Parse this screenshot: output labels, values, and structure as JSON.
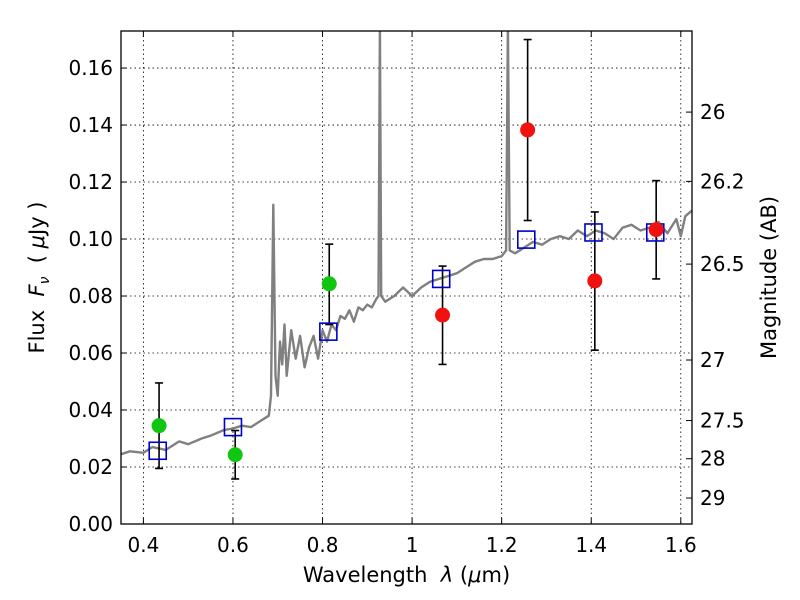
{
  "chart_data": {
    "type": "scatter",
    "xlabel_parts": [
      "Wavelength  ",
      "λ",
      " (",
      "μ",
      "m)"
    ],
    "ylabel_parts": [
      "Flux  ",
      "F",
      "ν",
      "  ( ",
      "μ",
      "Jy )"
    ],
    "y2label": "Magnitude (AB)",
    "xlim": [
      0.35,
      1.625
    ],
    "ylim": [
      0.0,
      0.173
    ],
    "x_ticks": [
      0.4,
      0.6,
      0.8,
      1.0,
      1.2,
      1.4,
      1.6
    ],
    "x_tick_labels": [
      "0.4",
      "0.6",
      "0.8",
      "1",
      "1.2",
      "1.4",
      "1.6"
    ],
    "y_ticks": [
      0.0,
      0.02,
      0.04,
      0.06,
      0.08,
      0.1,
      0.12,
      0.14,
      0.16
    ],
    "y_tick_labels": [
      "0.00",
      "0.02",
      "0.04",
      "0.06",
      "0.08",
      "0.10",
      "0.12",
      "0.14",
      "0.16"
    ],
    "y2_tick_labels": [
      "26",
      "26.2",
      "26.5",
      "27",
      "27.5",
      "28",
      "29"
    ],
    "y2_tick_values": [
      26.0,
      26.2,
      26.5,
      27.0,
      27.5,
      28.0,
      29.0
    ],
    "grid": true,
    "colors": {
      "spectrum": "#808080",
      "green_points": "#11c611",
      "red_points": "#f21111",
      "model_boxes": "#0000cc",
      "errorbars": "#000000"
    },
    "spectrum": [
      [
        0.35,
        0.0245
      ],
      [
        0.37,
        0.0255
      ],
      [
        0.4,
        0.025
      ],
      [
        0.42,
        0.027
      ],
      [
        0.45,
        0.026
      ],
      [
        0.48,
        0.029
      ],
      [
        0.5,
        0.028
      ],
      [
        0.53,
        0.03
      ],
      [
        0.55,
        0.031
      ],
      [
        0.58,
        0.033
      ],
      [
        0.6,
        0.0335
      ],
      [
        0.62,
        0.0345
      ],
      [
        0.64,
        0.034
      ],
      [
        0.66,
        0.036
      ],
      [
        0.68,
        0.038
      ],
      [
        0.685,
        0.045
      ],
      [
        0.69,
        0.112
      ],
      [
        0.695,
        0.052
      ],
      [
        0.7,
        0.045
      ],
      [
        0.705,
        0.064
      ],
      [
        0.71,
        0.056
      ],
      [
        0.715,
        0.07
      ],
      [
        0.72,
        0.052
      ],
      [
        0.73,
        0.068
      ],
      [
        0.74,
        0.058
      ],
      [
        0.75,
        0.066
      ],
      [
        0.76,
        0.055
      ],
      [
        0.77,
        0.062
      ],
      [
        0.78,
        0.066
      ],
      [
        0.79,
        0.058
      ],
      [
        0.8,
        0.068
      ],
      [
        0.81,
        0.064
      ],
      [
        0.82,
        0.07
      ],
      [
        0.83,
        0.068
      ],
      [
        0.84,
        0.073
      ],
      [
        0.85,
        0.072
      ],
      [
        0.86,
        0.075
      ],
      [
        0.87,
        0.071
      ],
      [
        0.88,
        0.076
      ],
      [
        0.89,
        0.075
      ],
      [
        0.9,
        0.077
      ],
      [
        0.91,
        0.076
      ],
      [
        0.92,
        0.079
      ],
      [
        0.925,
        0.08
      ],
      [
        0.928,
        0.175
      ],
      [
        0.931,
        0.08
      ],
      [
        0.94,
        0.078
      ],
      [
        0.96,
        0.08
      ],
      [
        0.98,
        0.083
      ],
      [
        1.0,
        0.08
      ],
      [
        1.02,
        0.083
      ],
      [
        1.04,
        0.085
      ],
      [
        1.06,
        0.086
      ],
      [
        1.08,
        0.087
      ],
      [
        1.1,
        0.088
      ],
      [
        1.12,
        0.09
      ],
      [
        1.14,
        0.092
      ],
      [
        1.16,
        0.093
      ],
      [
        1.18,
        0.093
      ],
      [
        1.2,
        0.094
      ],
      [
        1.21,
        0.096
      ],
      [
        1.214,
        0.175
      ],
      [
        1.218,
        0.096
      ],
      [
        1.23,
        0.095
      ],
      [
        1.25,
        0.097
      ],
      [
        1.27,
        0.099
      ],
      [
        1.29,
        0.098
      ],
      [
        1.31,
        0.1
      ],
      [
        1.33,
        0.101
      ],
      [
        1.35,
        0.1
      ],
      [
        1.37,
        0.103
      ],
      [
        1.39,
        0.101
      ],
      [
        1.41,
        0.103
      ],
      [
        1.43,
        0.102
      ],
      [
        1.45,
        0.1
      ],
      [
        1.47,
        0.104
      ],
      [
        1.49,
        0.105
      ],
      [
        1.51,
        0.103
      ],
      [
        1.53,
        0.104
      ],
      [
        1.55,
        0.106
      ],
      [
        1.57,
        0.102
      ],
      [
        1.59,
        0.107
      ],
      [
        1.6,
        0.101
      ],
      [
        1.61,
        0.108
      ],
      [
        1.625,
        0.11
      ]
    ],
    "green_points": [
      {
        "x": 0.435,
        "y": 0.0345,
        "yerr": [
          0.0195,
          0.0495
        ]
      },
      {
        "x": 0.605,
        "y": 0.0243,
        "yerr": [
          0.0158,
          0.0328
        ]
      },
      {
        "x": 0.815,
        "y": 0.0843,
        "yerr": [
          0.07,
          0.0982
        ]
      }
    ],
    "red_points": [
      {
        "x": 1.068,
        "y": 0.0733,
        "yerr": [
          0.056,
          0.0905
        ]
      },
      {
        "x": 1.258,
        "y": 0.1383,
        "yerr": [
          0.1065,
          0.17
        ]
      },
      {
        "x": 1.408,
        "y": 0.0853,
        "yerr": [
          0.061,
          0.1095
        ]
      },
      {
        "x": 1.545,
        "y": 0.1033,
        "yerr": [
          0.086,
          0.1205
        ]
      }
    ],
    "model_boxes": [
      {
        "x": 0.432,
        "y": 0.0257
      },
      {
        "x": 0.6,
        "y": 0.034
      },
      {
        "x": 0.813,
        "y": 0.0675
      },
      {
        "x": 1.065,
        "y": 0.086
      },
      {
        "x": 1.255,
        "y": 0.0998
      },
      {
        "x": 1.405,
        "y": 0.1023
      },
      {
        "x": 1.543,
        "y": 0.1023
      }
    ]
  }
}
